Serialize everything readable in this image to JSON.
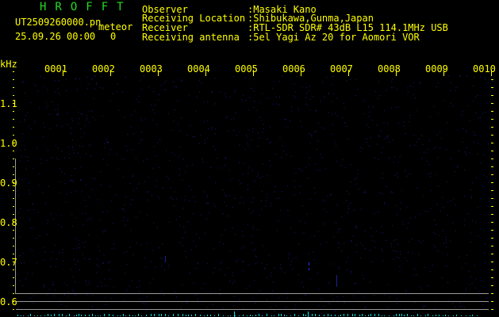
{
  "header": {
    "app_title": "HROFFT",
    "filename": "UT2509260000.pn",
    "mode": "meteor",
    "datetime": "25.09.26 00:00",
    "count": "0"
  },
  "info": [
    {
      "label": "Observer",
      "value": ":Masaki Kano"
    },
    {
      "label": "Receiving Location",
      "value": ":Shibukawa,Gunma,Japan"
    },
    {
      "label": "Receiver",
      "value": ":RTL-SDR SDR# 43dB L15 114.1MHz USB"
    },
    {
      "label": "Receiving antenna",
      "value": ":5el Yagi Az 20 for Aomori VOR"
    }
  ],
  "axis": {
    "unit": "kHz",
    "y_labels": [
      "1.1",
      "1.0",
      "0.9",
      "0.8",
      "0.7",
      "0.6"
    ],
    "x_labels": [
      "0001",
      "0002",
      "0003",
      "0004",
      "0005",
      "0006",
      "0007",
      "0008",
      "0009",
      "0010"
    ]
  },
  "colors": {
    "text": "#ffff00",
    "title": "#22dd22",
    "bars": "#00e5e5",
    "noise": "#1a1a80",
    "lines": "#9a9a9a"
  }
}
